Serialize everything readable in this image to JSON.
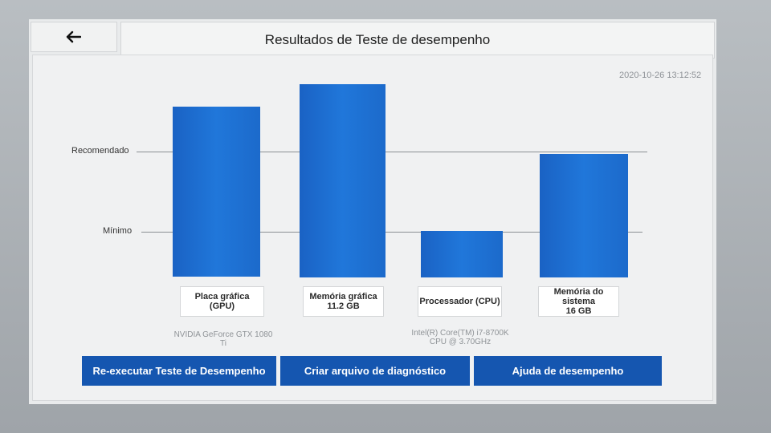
{
  "header": {
    "back_icon": "arrow-left-icon",
    "title": "Resultados de Teste de desempenho"
  },
  "timestamp": "2020-10-26 13:12:52",
  "reference_lines": {
    "recommended_label": "Recomendado",
    "minimum_label": "Mínimo"
  },
  "components": [
    {
      "label_line1": "Placa gráfica",
      "label_line2": "(GPU)",
      "label_line3": "",
      "detail_line1": "NVIDIA GeForce GTX 1080",
      "detail_line2": "Ti"
    },
    {
      "label_line1": "Memória gráfica",
      "label_line2": "11.2 GB",
      "label_line3": "",
      "detail_line1": "",
      "detail_line2": ""
    },
    {
      "label_line1": "Processador (CPU)",
      "label_line2": "",
      "label_line3": "",
      "detail_line1": "Intel(R) Core(TM) i7-8700K",
      "detail_line2": "CPU @ 3.70GHz"
    },
    {
      "label_line1": "Memória do",
      "label_line2": "sistema",
      "label_line3": "16 GB",
      "detail_line1": "",
      "detail_line2": ""
    }
  ],
  "buttons": {
    "rerun": "Re-executar Teste de Desempenho",
    "diagnostic": "Criar arquivo de diagnóstico",
    "help": "Ajuda de desempenho"
  },
  "colors": {
    "bar": "#1e6fd0",
    "button": "#1556b0"
  }
}
